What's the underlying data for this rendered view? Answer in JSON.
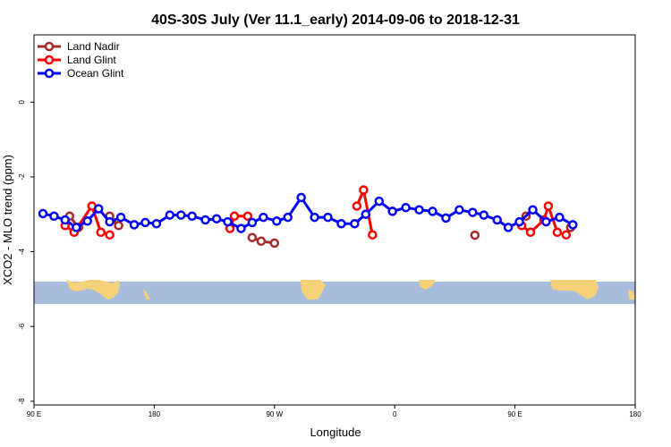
{
  "chart_data": {
    "type": "line",
    "title": "40S-30S July (Ver 11.1_early)   2014-09-06 to 2018-12-31",
    "xlabel": "Longitude",
    "ylabel": "XCO2 - MLO trend (ppm)",
    "xlim": [
      -90,
      180
    ],
    "ylim": [
      -8.1,
      1.8
    ],
    "x_ticks": [
      {
        "value": -90,
        "label": "90 E"
      },
      {
        "value": -36,
        "label": "180"
      },
      {
        "value": 18,
        "label": "90 W"
      },
      {
        "value": 72,
        "label": "0"
      },
      {
        "value": 126,
        "label": "90 E"
      },
      {
        "value": 180,
        "label": "180"
      }
    ],
    "y_ticks": [
      {
        "value": 0,
        "label": "0"
      },
      {
        "value": -2,
        "label": "-2"
      },
      {
        "value": -4,
        "label": "-4"
      },
      {
        "value": -6,
        "label": "-6"
      },
      {
        "value": -8,
        "label": "-8"
      }
    ],
    "legend_position": "top-left",
    "map_strip": {
      "ymin": -5.4,
      "ymax": -4.8,
      "ocean_color": "#a7bddb",
      "land_color": "#f5d27a"
    },
    "series": [
      {
        "name": "Land Nadir",
        "color": "#a52a2a",
        "segments": [
          [
            [
              -74,
              -3.05
            ],
            [
              -70,
              -3.35
            ]
          ],
          [
            [
              -56,
              -3.05
            ],
            [
              -52,
              -3.3
            ]
          ],
          [
            [
              8,
              -3.62
            ],
            [
              12,
              -3.72
            ],
            [
              18,
              -3.77
            ]
          ],
          [
            [
              108,
              -3.56
            ]
          ],
          [
            [
              131,
              -3.05
            ]
          ],
          [
            [
              151,
              -3.35
            ]
          ]
        ]
      },
      {
        "name": "Land Glint",
        "color": "#ff0000",
        "segments": [
          [
            [
              -76,
              -3.3
            ],
            [
              -72,
              -3.48
            ],
            [
              -64,
              -2.78
            ],
            [
              -60,
              -3.48
            ],
            [
              -56,
              -3.55
            ]
          ],
          [
            [
              -2,
              -3.38
            ],
            [
              0,
              -3.05
            ],
            [
              6,
              -3.05
            ]
          ],
          [
            [
              55,
              -2.78
            ],
            [
              58,
              -2.35
            ],
            [
              62,
              -3.55
            ]
          ],
          [
            [
              129,
              -3.3
            ],
            [
              133,
              -3.48
            ],
            [
              139,
              -3.15
            ],
            [
              141,
              -2.78
            ],
            [
              145,
              -3.48
            ],
            [
              149,
              -3.55
            ]
          ]
        ]
      },
      {
        "name": "Ocean Glint",
        "color": "#0000ff",
        "segments": [
          [
            [
              -86,
              -2.98
            ],
            [
              -81,
              -3.05
            ],
            [
              -76,
              -3.15
            ],
            [
              -71,
              -3.35
            ],
            [
              -66,
              -3.18
            ],
            [
              -61,
              -2.85
            ],
            [
              -56,
              -3.2
            ],
            [
              -51,
              -3.08
            ],
            [
              -45,
              -3.28
            ],
            [
              -40,
              -3.22
            ],
            [
              -35,
              -3.25
            ],
            [
              -29,
              -3.02
            ],
            [
              -24,
              -3.02
            ],
            [
              -19,
              -3.05
            ],
            [
              -13,
              -3.15
            ],
            [
              -8,
              -3.12
            ],
            [
              -3,
              -3.2
            ],
            [
              3,
              -3.38
            ],
            [
              8,
              -3.22
            ],
            [
              13,
              -3.08
            ],
            [
              19,
              -3.18
            ],
            [
              24,
              -3.08
            ],
            [
              30,
              -2.55
            ],
            [
              36,
              -3.08
            ],
            [
              42,
              -3.08
            ],
            [
              48,
              -3.25
            ],
            [
              54,
              -3.25
            ],
            [
              59,
              -3.0
            ],
            [
              65,
              -2.65
            ],
            [
              71,
              -2.92
            ],
            [
              77,
              -2.82
            ],
            [
              83,
              -2.88
            ],
            [
              89,
              -2.92
            ],
            [
              95,
              -3.1
            ],
            [
              101,
              -2.88
            ],
            [
              107,
              -2.95
            ],
            [
              112,
              -3.02
            ],
            [
              118,
              -3.15
            ],
            [
              123,
              -3.35
            ],
            [
              128,
              -3.2
            ],
            [
              134,
              -2.88
            ],
            [
              140,
              -3.2
            ],
            [
              146,
              -3.08
            ],
            [
              152,
              -3.28
            ]
          ]
        ]
      }
    ]
  }
}
